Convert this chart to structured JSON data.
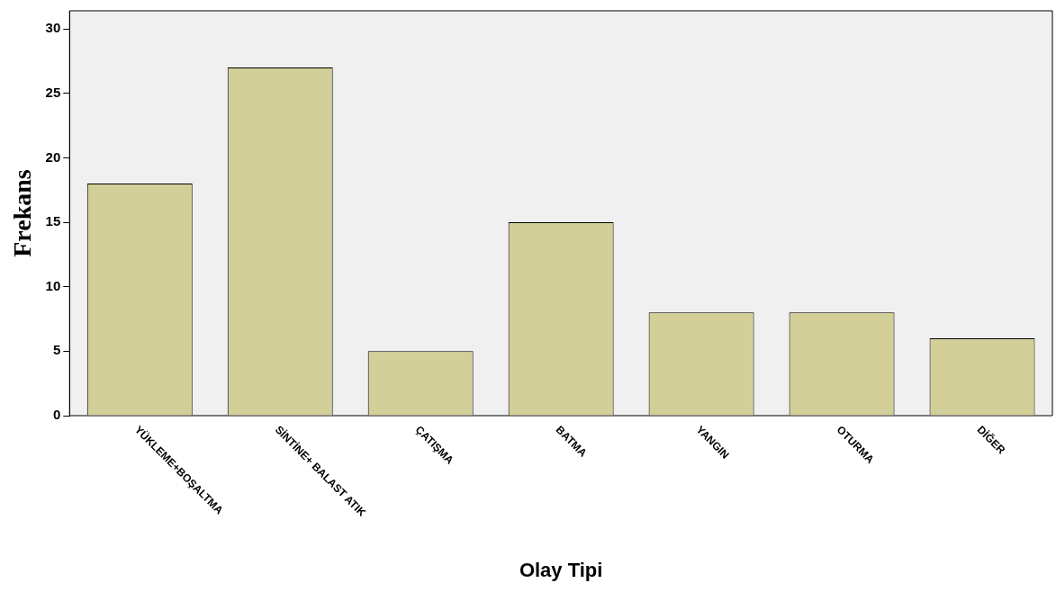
{
  "chart_data": {
    "type": "bar",
    "xlabel": "Olay Tipi",
    "ylabel": "Frekans",
    "categories": [
      "YÜKLEME+BOŞALTMA",
      "SİNTİNE+ BALAST ATIK",
      "ÇATIŞMA",
      "BATMA",
      "YANGIN",
      "OTURMA",
      "DİĞER"
    ],
    "values": [
      18,
      27,
      5,
      15,
      8,
      8,
      6
    ],
    "color": "#d3cf99",
    "ylim": [
      0,
      31.4
    ],
    "yticks": [
      0,
      5,
      10,
      15,
      20,
      25,
      30
    ],
    "grid": false,
    "legend": false
  }
}
